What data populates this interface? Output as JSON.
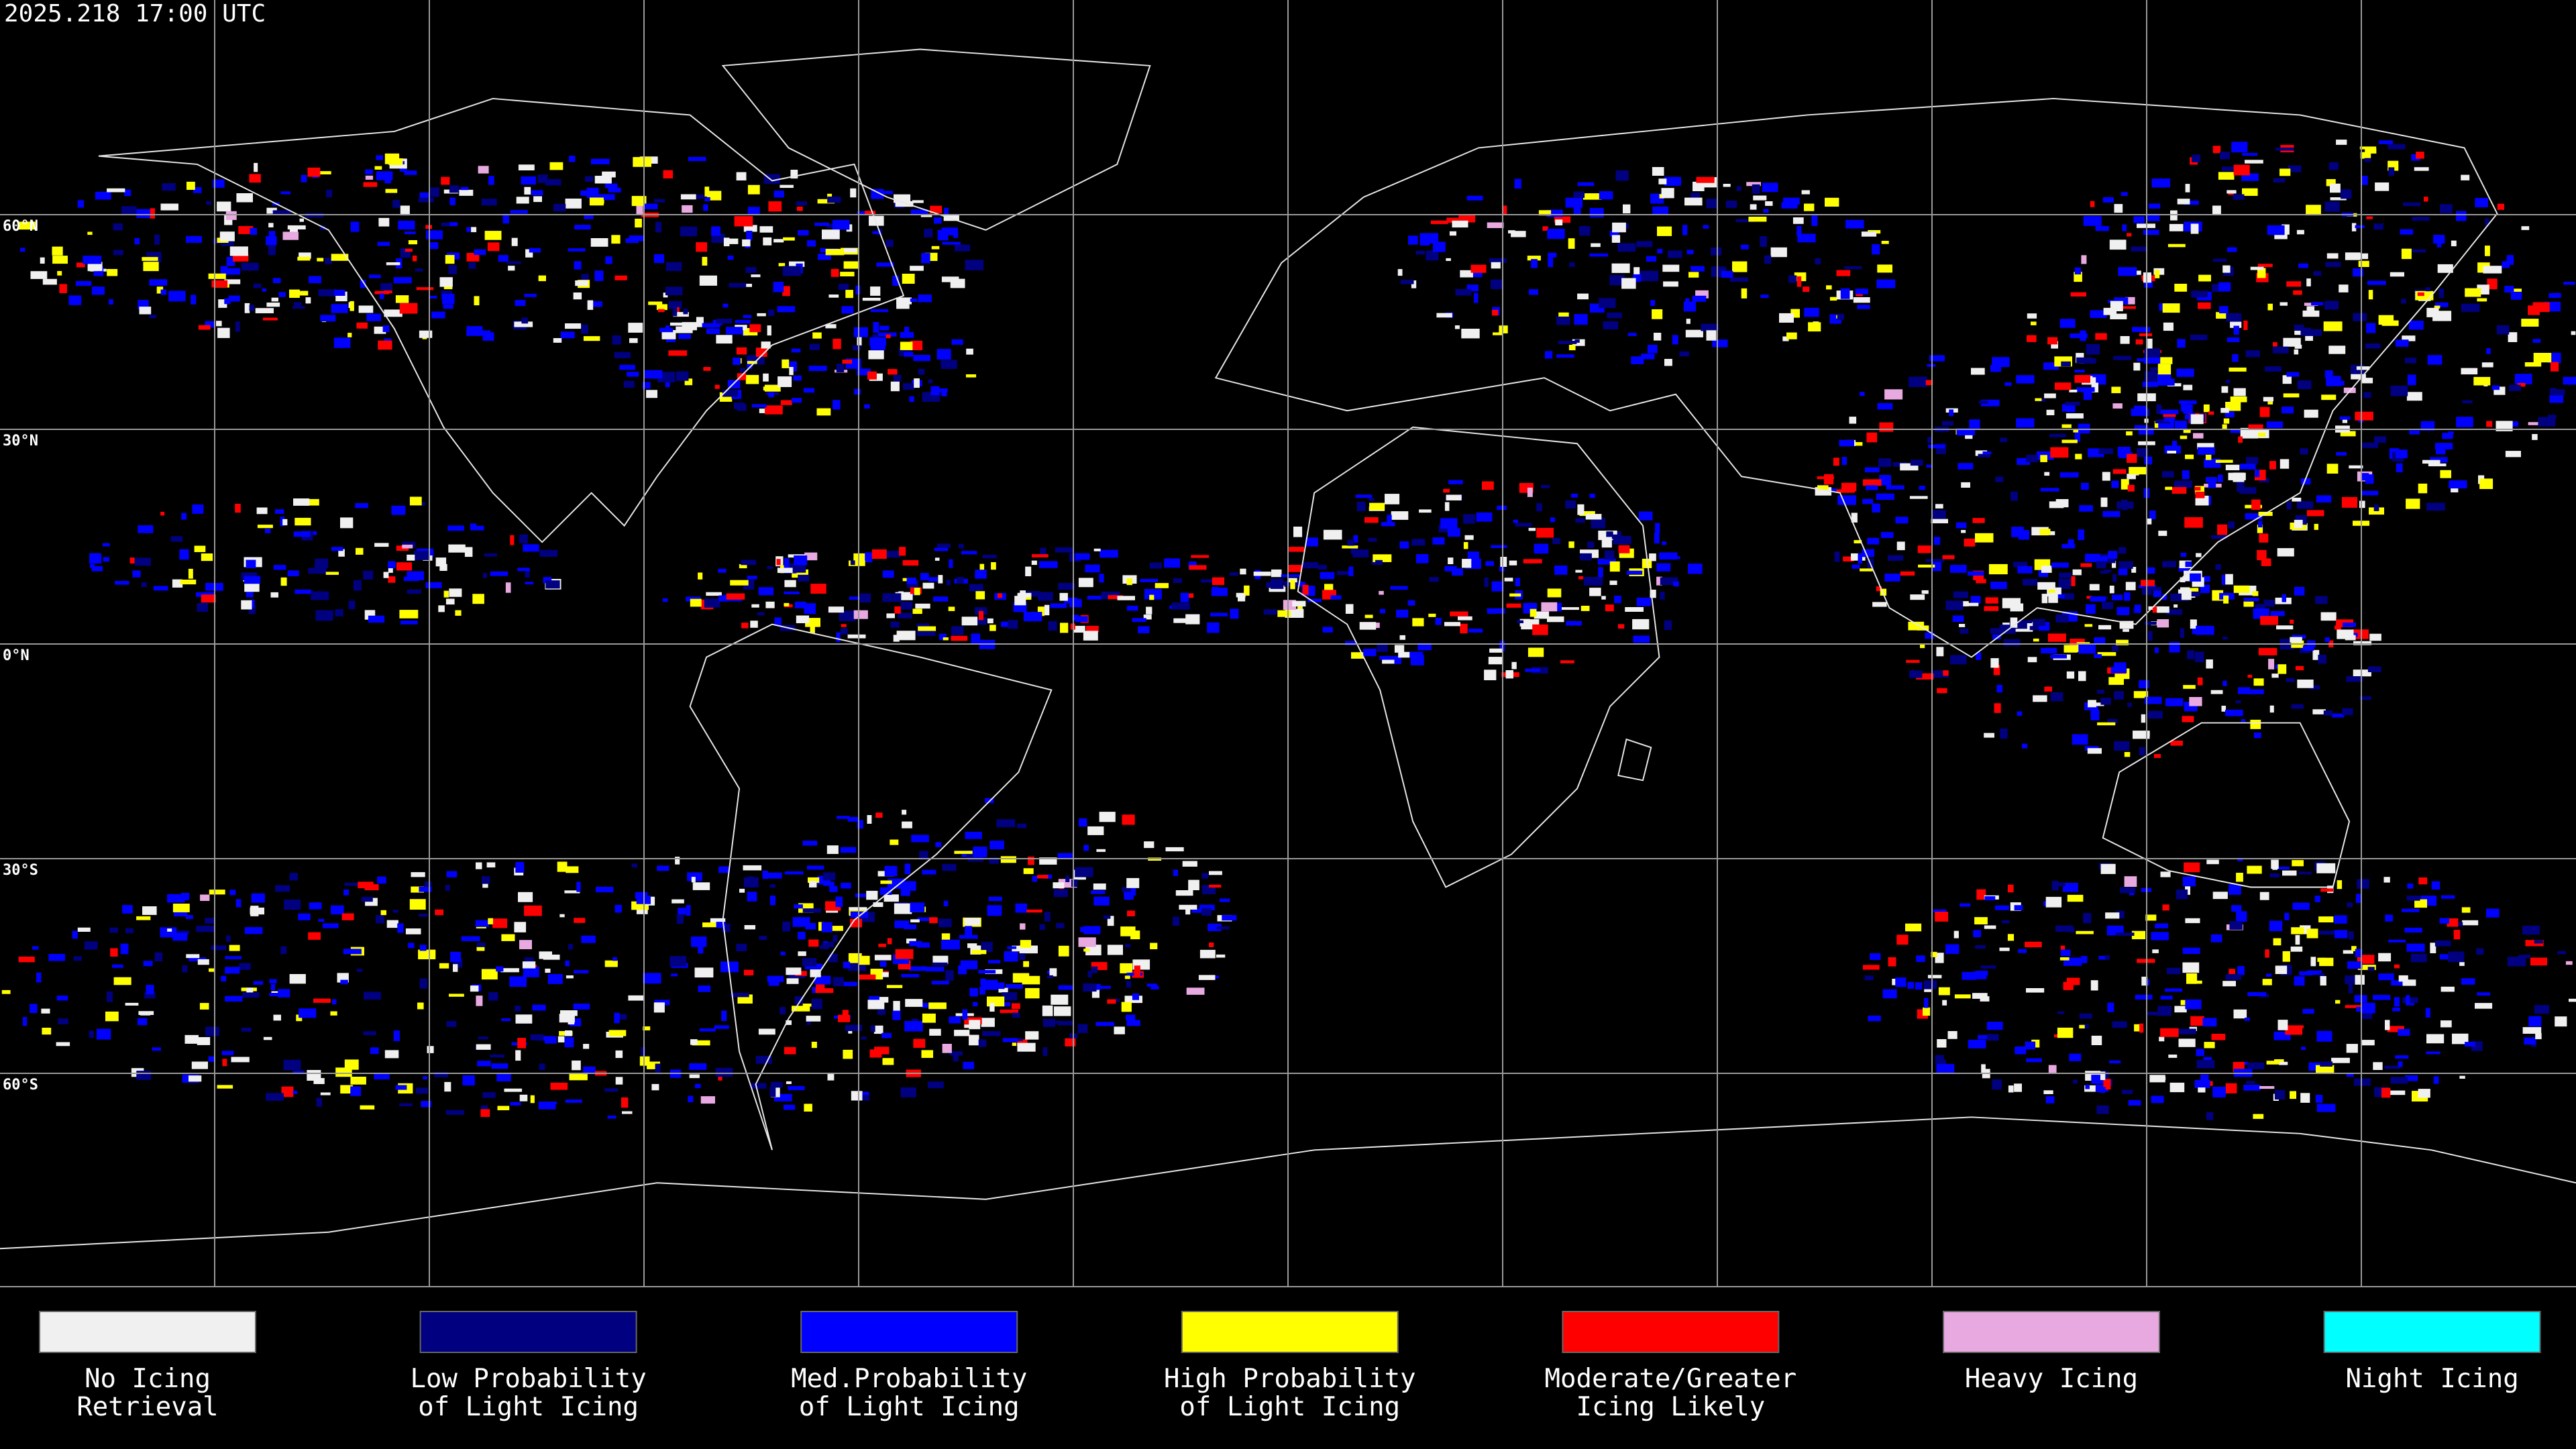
{
  "timestamp": "2025.218 17:00 UTC",
  "latitude_labels": [
    "60°N",
    "30°N",
    "0°N",
    "30°S",
    "60°S"
  ],
  "legend": [
    {
      "lines": [
        "No Icing",
        "Retrieval"
      ],
      "color": "#f0f0f0"
    },
    {
      "lines": [
        "Low Probability",
        "of Light Icing"
      ],
      "color": "#000080"
    },
    {
      "lines": [
        "Med.Probability",
        "of Light Icing"
      ],
      "color": "#0000ff"
    },
    {
      "lines": [
        "High Probability",
        "of Light Icing"
      ],
      "color": "#ffff00"
    },
    {
      "lines": [
        "Moderate/Greater",
        "Icing Likely"
      ],
      "color": "#ff0000"
    },
    {
      "lines": [
        "Heavy Icing"
      ],
      "color": "#e8a8e0"
    },
    {
      "lines": [
        "Night Icing"
      ],
      "color": "#00ffff"
    }
  ]
}
